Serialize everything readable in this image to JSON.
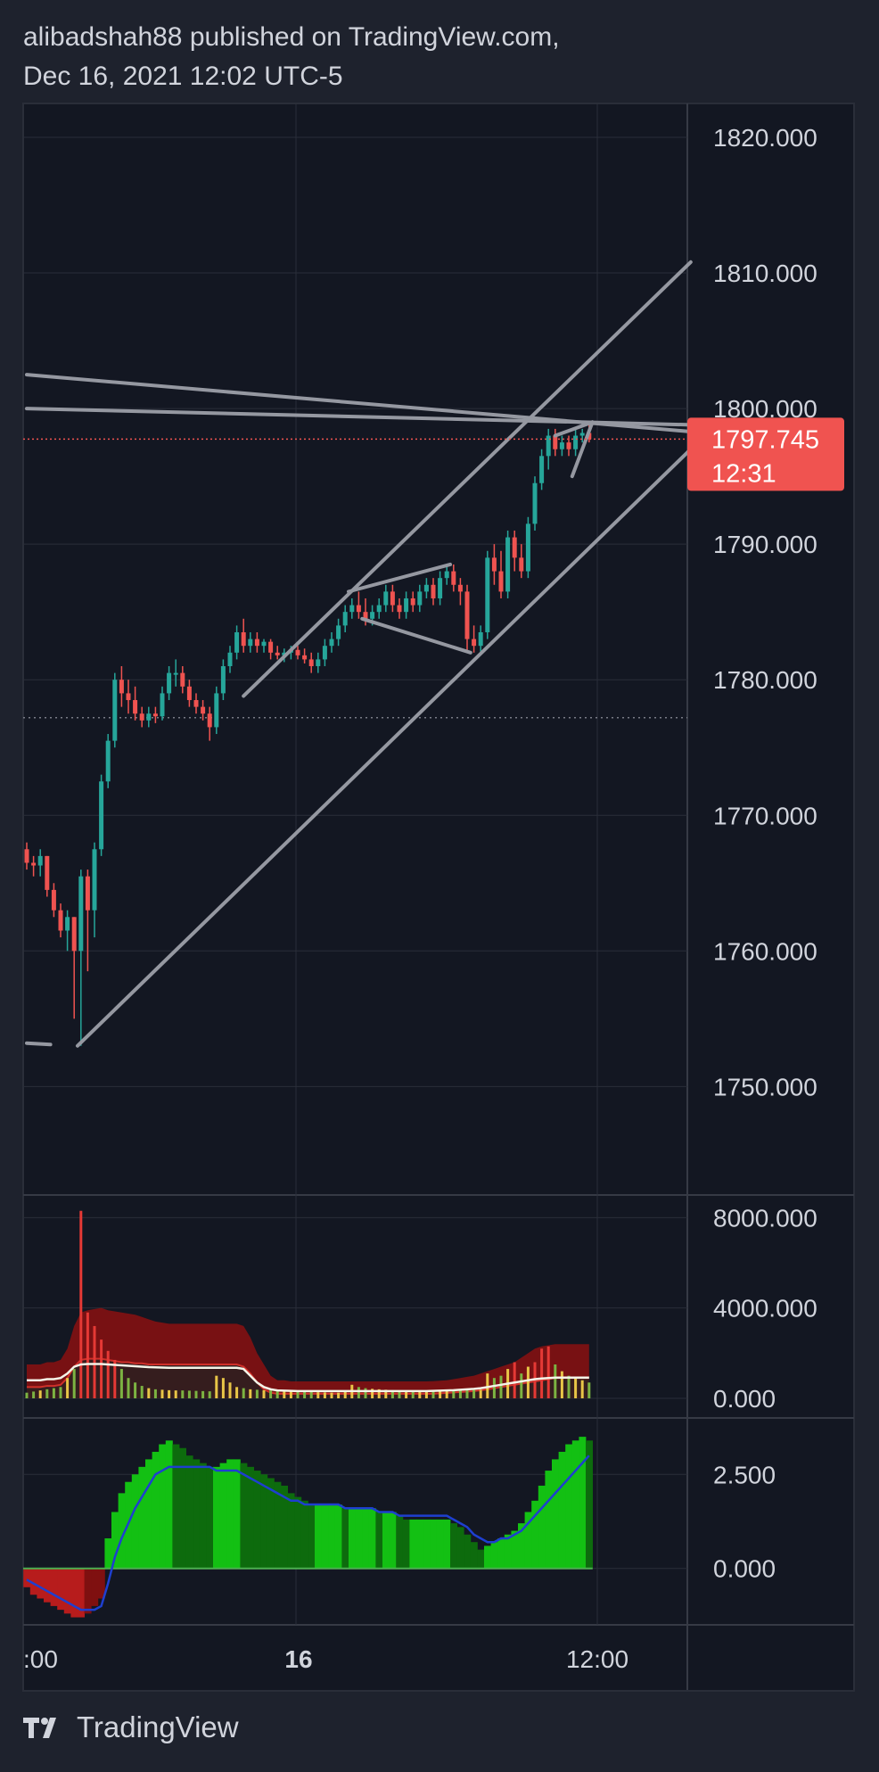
{
  "header": {
    "line1": "alibadshah88 published on TradingView.com,",
    "line2": "Dec 16, 2021 12:02 UTC-5"
  },
  "footer": {
    "brand": "TradingView",
    "logo_icon": "tradingview-logo-icon"
  },
  "colors": {
    "background": "#131722",
    "frame": "#1e222d",
    "grid": "#2a2e39",
    "up": "#26a69a",
    "down": "#ef5350",
    "drawing": "#9598a1",
    "price_badge": "#f05350"
  },
  "chart_data": [
    {
      "type": "candlestick",
      "ylim": [
        1742,
        1822.5
      ],
      "y_ticks": [
        "1820.000",
        "1810.000",
        "1800.000",
        "1790.000",
        "1780.000",
        "1770.000",
        "1760.000",
        "1750.000"
      ],
      "x_ticks": [
        ":00",
        "16",
        "12:00"
      ],
      "last_price": "1797.745",
      "countdown": "12:31",
      "reference_level": 1777.2,
      "candles": [
        [
          1767.5,
          1768,
          1766,
          1766.5
        ],
        [
          1766.5,
          1767,
          1765.5,
          1766.3
        ],
        [
          1766.3,
          1767.5,
          1765.5,
          1767
        ],
        [
          1767,
          1767,
          1764,
          1764.5
        ],
        [
          1764.5,
          1765,
          1762.5,
          1763
        ],
        [
          1763,
          1763.5,
          1761,
          1761.5
        ],
        [
          1761.5,
          1763,
          1760,
          1762.5
        ],
        [
          1762.5,
          1762.5,
          1755,
          1760
        ],
        [
          1760,
          1766,
          1753,
          1765.5
        ],
        [
          1765.5,
          1766,
          1758.5,
          1763
        ],
        [
          1763,
          1768,
          1761,
          1767.5
        ],
        [
          1767.5,
          1773,
          1767,
          1772.5
        ],
        [
          1772.5,
          1776,
          1772,
          1775.5
        ],
        [
          1775.5,
          1780.5,
          1775,
          1780
        ],
        [
          1780,
          1781,
          1778,
          1779
        ],
        [
          1779,
          1780,
          1777.5,
          1778.5
        ],
        [
          1778.5,
          1779.5,
          1777,
          1777.5
        ],
        [
          1777.5,
          1778,
          1776.5,
          1777
        ],
        [
          1777,
          1778,
          1776.5,
          1777.5
        ],
        [
          1777.5,
          1778,
          1776.8,
          1777.3
        ],
        [
          1777.3,
          1779.5,
          1777,
          1779
        ],
        [
          1779,
          1781,
          1778.5,
          1780.5
        ],
        [
          1780.5,
          1781.5,
          1779.5,
          1780.5
        ],
        [
          1780.5,
          1781,
          1779,
          1779.5
        ],
        [
          1779.5,
          1780,
          1778,
          1778.5
        ],
        [
          1778.5,
          1779,
          1777.5,
          1778
        ],
        [
          1778,
          1778.5,
          1777,
          1777.5
        ],
        [
          1777.5,
          1778,
          1775.5,
          1776.5
        ],
        [
          1776.5,
          1779.5,
          1776,
          1779
        ],
        [
          1779,
          1781.5,
          1778.5,
          1781
        ],
        [
          1781,
          1782.5,
          1780.5,
          1782
        ],
        [
          1782,
          1784,
          1781.5,
          1783.5
        ],
        [
          1783.5,
          1784.5,
          1782,
          1782.5
        ],
        [
          1782.5,
          1783.5,
          1782,
          1783
        ],
        [
          1783,
          1783.5,
          1782,
          1782.5
        ],
        [
          1782.5,
          1783,
          1782,
          1782.8
        ],
        [
          1782.8,
          1783,
          1781.5,
          1782
        ],
        [
          1782,
          1782.5,
          1781.5,
          1781.8
        ],
        [
          1781.8,
          1782.3,
          1781.3,
          1782
        ],
        [
          1782,
          1782.5,
          1781.5,
          1782.2
        ],
        [
          1782.2,
          1782.5,
          1781.5,
          1781.8
        ],
        [
          1781.8,
          1782.3,
          1781.2,
          1781.5
        ],
        [
          1781.5,
          1782,
          1780.5,
          1781
        ],
        [
          1781,
          1782,
          1780.5,
          1781.5
        ],
        [
          1781.5,
          1783,
          1781,
          1782.5
        ],
        [
          1782.5,
          1783.5,
          1782,
          1783
        ],
        [
          1783,
          1784.5,
          1782.5,
          1784
        ],
        [
          1784,
          1785.5,
          1783.5,
          1785
        ],
        [
          1785,
          1786,
          1784.5,
          1785.5
        ],
        [
          1785.5,
          1786.5,
          1784.5,
          1785
        ],
        [
          1785,
          1786,
          1784,
          1784.5
        ],
        [
          1784.5,
          1785.5,
          1784,
          1785
        ],
        [
          1785,
          1786,
          1784.5,
          1785.5
        ],
        [
          1785.5,
          1787,
          1785,
          1786.5
        ],
        [
          1786.5,
          1787,
          1785,
          1785.5
        ],
        [
          1785.5,
          1786,
          1784.5,
          1785
        ],
        [
          1785,
          1786.5,
          1784.5,
          1786
        ],
        [
          1786,
          1786.5,
          1785,
          1785.5
        ],
        [
          1785.5,
          1787,
          1785,
          1786.5
        ],
        [
          1786.5,
          1787.5,
          1786,
          1787
        ],
        [
          1787,
          1787.5,
          1785.5,
          1786
        ],
        [
          1786,
          1788,
          1785.5,
          1787.5
        ],
        [
          1787.5,
          1788.5,
          1787,
          1788
        ],
        [
          1788,
          1788.5,
          1786.5,
          1787
        ],
        [
          1787,
          1787.5,
          1785.5,
          1786.5
        ],
        [
          1786.5,
          1787,
          1782,
          1783
        ],
        [
          1783,
          1784,
          1782,
          1782.5
        ],
        [
          1782.5,
          1784,
          1782,
          1783.5
        ],
        [
          1783.5,
          1789.5,
          1783,
          1789
        ],
        [
          1789,
          1790,
          1787,
          1788
        ],
        [
          1788,
          1789.5,
          1786,
          1786.5
        ],
        [
          1786.5,
          1791,
          1786,
          1790.5
        ],
        [
          1790.5,
          1791,
          1788,
          1789
        ],
        [
          1789,
          1790,
          1787.5,
          1788
        ],
        [
          1788,
          1792,
          1787.5,
          1791.5
        ],
        [
          1791.5,
          1795,
          1791,
          1794.5
        ],
        [
          1794.5,
          1797,
          1794,
          1796.5
        ],
        [
          1796.5,
          1798.5,
          1795.5,
          1798
        ],
        [
          1798,
          1798.5,
          1796.5,
          1797
        ],
        [
          1797,
          1798,
          1796.5,
          1797.5
        ],
        [
          1797.5,
          1798,
          1796.5,
          1797
        ],
        [
          1797,
          1798.5,
          1796.5,
          1798
        ],
        [
          1798,
          1798.5,
          1797.5,
          1798.2
        ],
        [
          1798.2,
          1799,
          1797.5,
          1797.745
        ]
      ],
      "trendlines": [
        {
          "p1": [
            0,
            1802.5
          ],
          "p2": [
            98,
            1798.3
          ]
        },
        {
          "p1": [
            0,
            1800
          ],
          "p2": [
            98,
            1798.8
          ]
        },
        {
          "p1": [
            7.5,
            1753
          ],
          "p2": [
            98,
            1797
          ]
        },
        {
          "p1": [
            32,
            1778.8
          ],
          "p2": [
            98,
            1810.8
          ]
        },
        {
          "p1": [
            47.5,
            1786.5
          ],
          "p2": [
            62.5,
            1788.5
          ]
        },
        {
          "p1": [
            49.5,
            1784.5
          ],
          "p2": [
            65.5,
            1782
          ]
        },
        {
          "p1": [
            78,
            1798
          ],
          "p2": [
            83.5,
            1799
          ]
        },
        {
          "p1": [
            80.5,
            1795
          ],
          "p2": [
            83.5,
            1799
          ]
        },
        {
          "p1": [
            0,
            1753.2
          ],
          "p2": [
            3.5,
            1753.1
          ]
        }
      ]
    },
    {
      "type": "bar",
      "name": "volume",
      "ylim": [
        0,
        9000
      ],
      "y_ticks": [
        "8000.000",
        "4000.000",
        "0.000"
      ],
      "values": [
        250,
        300,
        350,
        400,
        450,
        500,
        900,
        1300,
        8300,
        3800,
        3200,
        2600,
        2100,
        1700,
        1300,
        900,
        700,
        550,
        450,
        400,
        380,
        360,
        350,
        350,
        340,
        330,
        320,
        310,
        1000,
        900,
        700,
        500,
        450,
        400,
        380,
        360,
        350,
        330,
        320,
        310,
        300,
        290,
        280,
        270,
        260,
        250,
        250,
        300,
        600,
        500,
        450,
        420,
        400,
        380,
        360,
        340,
        320,
        310,
        300,
        300,
        310,
        320,
        330,
        340,
        350,
        360,
        370,
        380,
        1100,
        900,
        1000,
        1300,
        1600,
        1100,
        1400,
        1600,
        2200,
        2300,
        1500,
        1200,
        1000,
        900,
        800,
        700
      ],
      "band_upper": [
        1500,
        1500,
        1500,
        1600,
        1600,
        1700,
        2200,
        3200,
        3800,
        3900,
        3950,
        4000,
        3900,
        3850,
        3800,
        3750,
        3700,
        3600,
        3500,
        3400,
        3350,
        3300,
        3300,
        3300,
        3300,
        3300,
        3300,
        3300,
        3300,
        3300,
        3300,
        3300,
        3200,
        2700,
        2000,
        1500,
        1000,
        800,
        800,
        750,
        750,
        750,
        750,
        750,
        750,
        750,
        750,
        750,
        750,
        750,
        750,
        750,
        750,
        750,
        750,
        750,
        750,
        750,
        750,
        750,
        760,
        780,
        800,
        850,
        900,
        950,
        1000,
        1100,
        1200,
        1300,
        1400,
        1500,
        1600,
        1800,
        2000,
        2200,
        2300,
        2350,
        2400,
        2400,
        2400,
        2400,
        2400,
        2400
      ],
      "band_lower": [
        500,
        500,
        500,
        550,
        550,
        600,
        900,
        1400,
        1700,
        1750,
        1750,
        1750,
        1700,
        1650,
        1600,
        1600,
        1550,
        1550,
        1500,
        1500,
        1500,
        1500,
        1500,
        1500,
        1500,
        1500,
        1500,
        1500,
        1500,
        1500,
        1500,
        1500,
        1400,
        1100,
        700,
        400,
        250,
        200,
        200,
        200,
        200,
        200,
        200,
        200,
        200,
        200,
        200,
        200,
        200,
        200,
        200,
        200,
        200,
        200,
        200,
        200,
        200,
        200,
        200,
        200,
        200,
        220,
        240,
        260,
        280,
        300,
        320,
        360,
        400,
        450,
        500,
        550,
        600,
        650,
        700,
        750,
        800,
        850,
        900,
        900,
        900,
        900,
        900,
        900
      ],
      "average": [
        800,
        800,
        800,
        850,
        850,
        900,
        1100,
        1400,
        1500,
        1520,
        1520,
        1520,
        1500,
        1480,
        1460,
        1440,
        1420,
        1400,
        1380,
        1370,
        1360,
        1350,
        1350,
        1350,
        1350,
        1350,
        1350,
        1350,
        1350,
        1350,
        1350,
        1350,
        1300,
        1000,
        700,
        500,
        400,
        350,
        340,
        330,
        320,
        320,
        320,
        320,
        320,
        320,
        320,
        320,
        320,
        320,
        320,
        320,
        320,
        320,
        320,
        320,
        320,
        320,
        320,
        320,
        330,
        340,
        350,
        360,
        380,
        400,
        420,
        450,
        500,
        550,
        600,
        650,
        700,
        750,
        800,
        850,
        880,
        900,
        920,
        920,
        920,
        920,
        920,
        920
      ]
    },
    {
      "type": "bar",
      "name": "oscillator",
      "ylim": [
        -1.5,
        4
      ],
      "y_ticks": [
        "2.500",
        "0.000"
      ],
      "values": [
        -0.5,
        -0.7,
        -0.8,
        -0.9,
        -1.0,
        -1.1,
        -1.2,
        -1.3,
        -1.3,
        -1.2,
        -1.0,
        -0.8,
        0.8,
        1.5,
        2.0,
        2.3,
        2.5,
        2.7,
        2.9,
        3.1,
        3.3,
        3.4,
        3.3,
        3.2,
        3.0,
        2.9,
        2.8,
        2.7,
        2.7,
        2.8,
        2.9,
        2.9,
        2.8,
        2.7,
        2.6,
        2.5,
        2.4,
        2.3,
        2.2,
        2.0,
        1.9,
        1.8,
        1.7,
        1.7,
        1.7,
        1.7,
        1.7,
        1.6,
        1.6,
        1.6,
        1.6,
        1.6,
        1.5,
        1.5,
        1.5,
        1.4,
        1.3,
        1.3,
        1.3,
        1.3,
        1.3,
        1.3,
        1.3,
        1.2,
        1.1,
        0.9,
        0.7,
        0.5,
        0.6,
        0.7,
        0.8,
        0.9,
        1.0,
        1.2,
        1.5,
        1.8,
        2.2,
        2.6,
        2.9,
        3.1,
        3.3,
        3.4,
        3.5,
        3.4
      ],
      "signal": [
        -0.3,
        -0.4,
        -0.5,
        -0.6,
        -0.7,
        -0.8,
        -0.9,
        -1.0,
        -1.1,
        -1.1,
        -1.1,
        -1.0,
        -0.4,
        0.3,
        0.8,
        1.2,
        1.6,
        1.9,
        2.2,
        2.5,
        2.6,
        2.7,
        2.7,
        2.7,
        2.7,
        2.7,
        2.7,
        2.7,
        2.6,
        2.6,
        2.6,
        2.6,
        2.5,
        2.4,
        2.3,
        2.2,
        2.1,
        2.0,
        1.9,
        1.8,
        1.8,
        1.7,
        1.7,
        1.7,
        1.7,
        1.7,
        1.7,
        1.6,
        1.6,
        1.6,
        1.6,
        1.6,
        1.5,
        1.5,
        1.5,
        1.4,
        1.4,
        1.4,
        1.4,
        1.4,
        1.4,
        1.4,
        1.4,
        1.3,
        1.2,
        1.1,
        0.9,
        0.8,
        0.7,
        0.7,
        0.8,
        0.8,
        0.9,
        1.0,
        1.2,
        1.4,
        1.6,
        1.8,
        2.0,
        2.2,
        2.4,
        2.6,
        2.8,
        3.0
      ]
    }
  ]
}
